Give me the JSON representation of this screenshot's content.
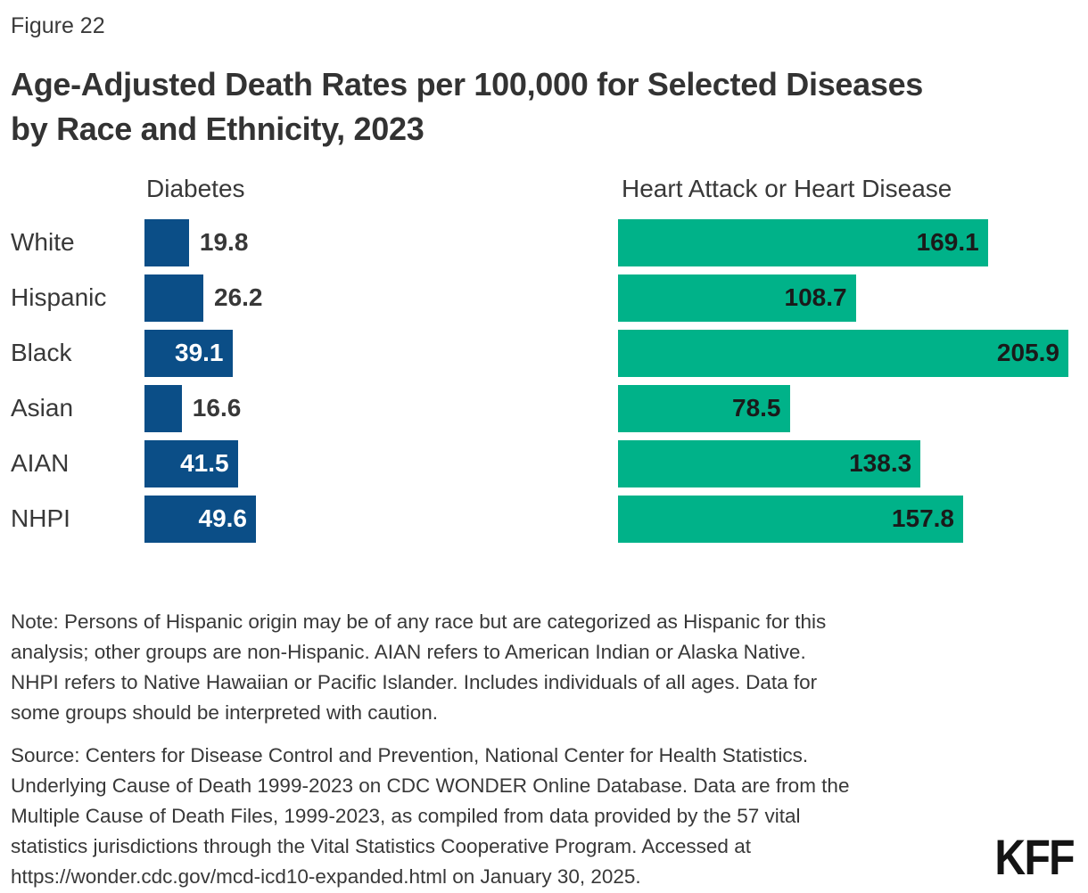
{
  "figure_label": "Figure 22",
  "title": {
    "line1": "Age-Adjusted Death Rates per 100,000 for Selected Diseases",
    "line2": "by Race and Ethnicity, 2023"
  },
  "chart_data": {
    "type": "bar",
    "orientation": "horizontal",
    "categories": [
      "White",
      "Hispanic",
      "Black",
      "Asian",
      "AIAN",
      "NHPI"
    ],
    "series": [
      {
        "name": "Diabetes",
        "values": [
          19.8,
          26.2,
          39.1,
          16.6,
          41.5,
          49.6
        ],
        "color": "#0b4e87",
        "label_inside": [
          false,
          false,
          true,
          false,
          true,
          true
        ],
        "inside_label_color": "#ffffff",
        "outside_label_color": "#383838"
      },
      {
        "name": "Heart Attack or Heart Disease",
        "values": [
          169.1,
          108.7,
          205.9,
          78.5,
          138.3,
          157.8
        ],
        "color": "#00b289",
        "label_inside": [
          true,
          true,
          true,
          true,
          true,
          true
        ],
        "inside_label_color": "#1a1a1a",
        "outside_label_color": "#383838"
      }
    ],
    "value_labels_shown": true,
    "axes_shown": false,
    "gridlines": false,
    "legend": "none (panel headers above each series)"
  },
  "note": {
    "lines": [
      "Note: Persons of Hispanic origin may be of any race but are categorized as Hispanic for this",
      "analysis; other groups are non-Hispanic. AIAN refers to American Indian or Alaska Native.",
      "NHPI refers to Native Hawaiian or Pacific Islander. Includes individuals of all ages. Data for",
      "some groups should be interpreted with caution."
    ]
  },
  "source": {
    "lines": [
      "Source: Centers for Disease Control and Prevention, National Center for Health Statistics.",
      "Underlying Cause of Death 1999-2023 on CDC WONDER Online Database. Data are from the",
      "Multiple Cause of Death Files, 1999-2023, as compiled from data provided by the 57 vital",
      "statistics jurisdictions through the Vital Statistics Cooperative Program. Accessed at",
      "https://wonder.cdc.gov/mcd-icd10-expanded.html on January 30, 2025."
    ]
  },
  "logo": "KFF"
}
